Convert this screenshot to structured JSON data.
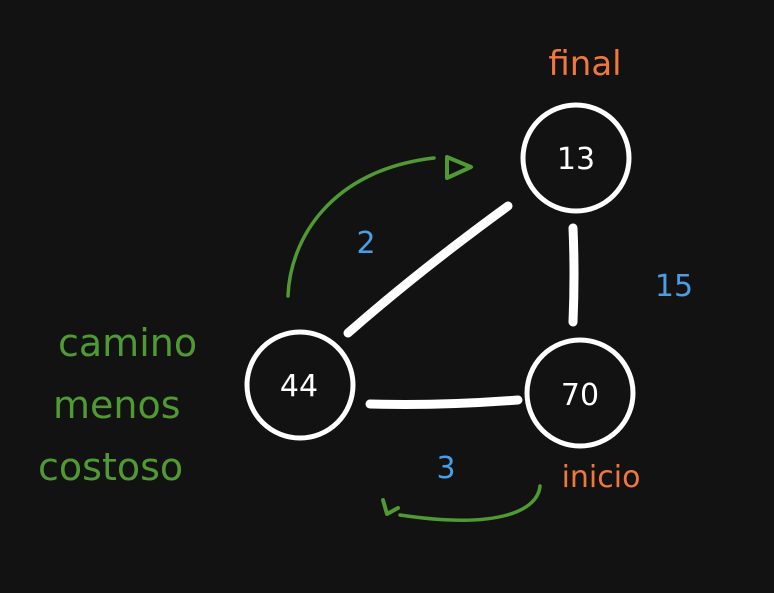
{
  "graph": {
    "nodes": [
      {
        "id": "n13",
        "label": "13"
      },
      {
        "id": "n44",
        "label": "44"
      },
      {
        "id": "n70",
        "label": "70"
      }
    ],
    "edges": [
      {
        "from": "44",
        "to": "13",
        "weight": "2"
      },
      {
        "from": "13",
        "to": "70",
        "weight": "15"
      },
      {
        "from": "44",
        "to": "70",
        "weight": "3"
      }
    ]
  },
  "annotations": {
    "final_label": "final",
    "start_label": "inicio",
    "path_caption": [
      "camino",
      "menos",
      "costoso"
    ]
  },
  "colors": {
    "background": "#121212",
    "node_stroke": "#ffffff",
    "weight_text": "#4a9ee6",
    "orange_label": "#f0783c",
    "green_annotation": "#4f9a32"
  }
}
